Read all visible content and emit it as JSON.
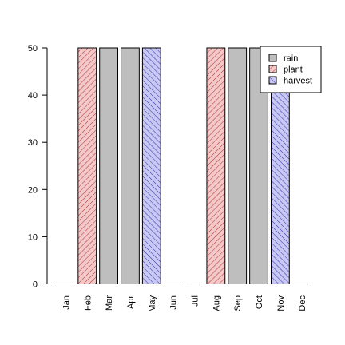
{
  "chart_data": {
    "type": "bar",
    "categories": [
      "Jan",
      "Feb",
      "Mar",
      "Apr",
      "May",
      "Jun",
      "Jul",
      "Aug",
      "Sep",
      "Oct",
      "Nov",
      "Dec"
    ],
    "values": [
      0,
      50,
      50,
      50,
      50,
      0,
      0,
      50,
      50,
      50,
      50,
      0
    ],
    "bar_type": [
      "rain",
      "plant",
      "rain",
      "rain",
      "harvest",
      "rain",
      "rain",
      "plant",
      "rain",
      "rain",
      "harvest",
      "rain"
    ],
    "ylim": [
      0,
      50
    ],
    "yticks": [
      0,
      10,
      20,
      30,
      40,
      50
    ],
    "title": "",
    "xlabel": "",
    "ylabel": "",
    "grid": false,
    "legend": {
      "placement": "top-right",
      "entries": [
        {
          "key": "rain",
          "label": "rain",
          "fill": "#bebebe",
          "hatch": "none"
        },
        {
          "key": "plant",
          "label": "plant",
          "fill": "#f2c8c8",
          "hatch": "#b03030"
        },
        {
          "key": "harvest",
          "label": "harvest",
          "fill": "#c8c8f2",
          "hatch": "#3030b0"
        }
      ]
    }
  }
}
